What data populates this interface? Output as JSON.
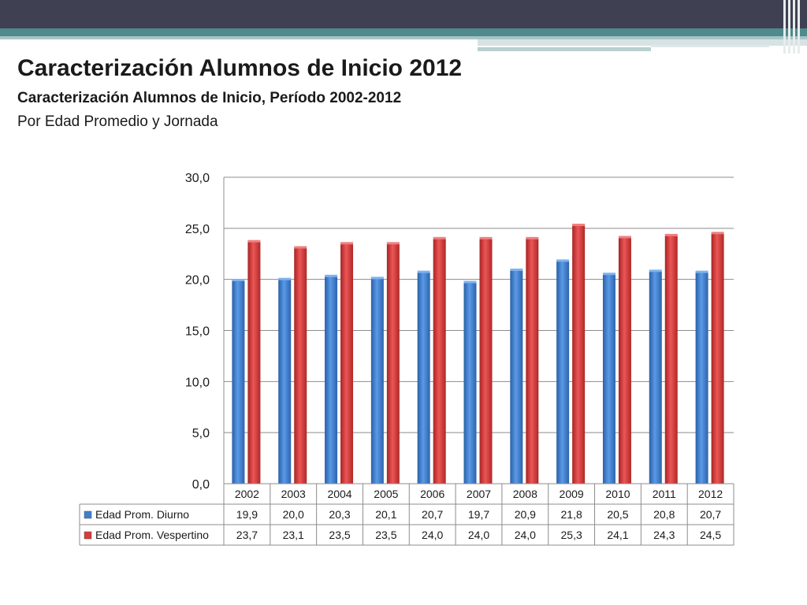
{
  "slide": {
    "title": "Caracterización Alumnos de Inicio 2012",
    "subtitle": "Caracterización Alumnos de Inicio, Período 2002-2012",
    "subtitle2": "Por Edad Promedio y Jornada"
  },
  "colors": {
    "header": "#3f4051",
    "accent": "#4f8a8c",
    "series_diurno": "#3f7fcf",
    "series_vespertino": "#d93a3a"
  },
  "chart_data": {
    "type": "bar",
    "categories": [
      "2002",
      "2003",
      "2004",
      "2005",
      "2006",
      "2007",
      "2008",
      "2009",
      "2010",
      "2011",
      "2012"
    ],
    "series": [
      {
        "name": "Edad Prom. Diurno",
        "values": [
          19.9,
          20.0,
          20.3,
          20.1,
          20.7,
          19.7,
          20.9,
          21.8,
          20.5,
          20.8,
          20.7
        ],
        "labels": [
          "19,9",
          "20,0",
          "20,3",
          "20,1",
          "20,7",
          "19,7",
          "20,9",
          "21,8",
          "20,5",
          "20,8",
          "20,7"
        ]
      },
      {
        "name": "Edad Prom. Vespertino",
        "values": [
          23.7,
          23.1,
          23.5,
          23.5,
          24.0,
          24.0,
          24.0,
          25.3,
          24.1,
          24.3,
          24.5
        ],
        "labels": [
          "23,7",
          "23,1",
          "23,5",
          "23,5",
          "24,0",
          "24,0",
          "24,0",
          "25,3",
          "24,1",
          "24,3",
          "24,5"
        ]
      }
    ],
    "ylim": [
      0,
      30
    ],
    "yticks": [
      "0,0",
      "5,0",
      "10,0",
      "15,0",
      "20,0",
      "25,0",
      "30,0"
    ],
    "grid": true,
    "legend": "data-table"
  }
}
